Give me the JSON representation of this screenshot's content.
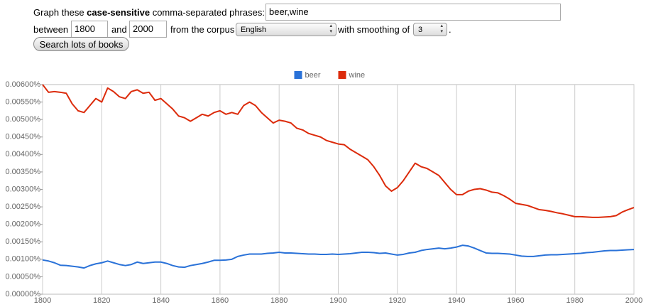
{
  "form": {
    "prompt_prefix": "Graph these",
    "prompt_bold": "case-sensitive",
    "prompt_suffix": "comma-separated phrases:",
    "phrases": "beer,wine",
    "between_label": "between",
    "start_year": "1800",
    "and_label": "and",
    "end_year": "2000",
    "corpus_label": "from the corpus",
    "corpus": "English",
    "smoothing_label": "with smoothing of",
    "smoothing": "3",
    "period": ".",
    "button": "Search lots of books"
  },
  "chart_data": {
    "type": "line",
    "x": [
      1800,
      1802,
      1804,
      1806,
      1808,
      1810,
      1812,
      1814,
      1816,
      1818,
      1820,
      1822,
      1824,
      1826,
      1828,
      1830,
      1832,
      1834,
      1836,
      1838,
      1840,
      1842,
      1844,
      1846,
      1848,
      1850,
      1852,
      1854,
      1856,
      1858,
      1860,
      1862,
      1864,
      1866,
      1868,
      1870,
      1872,
      1874,
      1876,
      1878,
      1880,
      1882,
      1884,
      1886,
      1888,
      1890,
      1892,
      1894,
      1896,
      1898,
      1900,
      1902,
      1904,
      1906,
      1908,
      1910,
      1912,
      1914,
      1916,
      1918,
      1920,
      1922,
      1924,
      1926,
      1928,
      1930,
      1932,
      1934,
      1936,
      1938,
      1940,
      1942,
      1944,
      1946,
      1948,
      1950,
      1952,
      1954,
      1956,
      1958,
      1960,
      1962,
      1964,
      1966,
      1968,
      1970,
      1972,
      1974,
      1976,
      1978,
      1980,
      1982,
      1984,
      1986,
      1988,
      1990,
      1992,
      1994,
      1996,
      1998,
      2000
    ],
    "series": [
      {
        "name": "beer",
        "color": "#2a72d8",
        "values": [
          0.00098,
          0.00095,
          0.0009,
          0.00083,
          0.00082,
          0.0008,
          0.00078,
          0.00075,
          0.00082,
          0.00087,
          0.0009,
          0.00095,
          0.0009,
          0.00085,
          0.00082,
          0.00085,
          0.00092,
          0.00088,
          0.0009,
          0.00092,
          0.00092,
          0.00088,
          0.00082,
          0.00078,
          0.00077,
          0.00082,
          0.00085,
          0.00088,
          0.00092,
          0.00097,
          0.00097,
          0.00098,
          0.001,
          0.00108,
          0.00112,
          0.00115,
          0.00115,
          0.00115,
          0.00117,
          0.00118,
          0.0012,
          0.00118,
          0.00118,
          0.00117,
          0.00116,
          0.00115,
          0.00115,
          0.00114,
          0.00114,
          0.00115,
          0.00114,
          0.00115,
          0.00116,
          0.00118,
          0.0012,
          0.0012,
          0.00119,
          0.00117,
          0.00118,
          0.00115,
          0.00112,
          0.00114,
          0.00118,
          0.0012,
          0.00125,
          0.00128,
          0.0013,
          0.00132,
          0.0013,
          0.00132,
          0.00135,
          0.0014,
          0.00138,
          0.00132,
          0.00125,
          0.00118,
          0.00117,
          0.00117,
          0.00116,
          0.00115,
          0.00112,
          0.00109,
          0.00108,
          0.00108,
          0.0011,
          0.00112,
          0.00113,
          0.00113,
          0.00114,
          0.00115,
          0.00116,
          0.00117,
          0.00119,
          0.0012,
          0.00122,
          0.00124,
          0.00125,
          0.00125,
          0.00126,
          0.00127,
          0.00128
        ]
      },
      {
        "name": "wine",
        "color": "#dc2b0b",
        "values": [
          0.006,
          0.00578,
          0.0058,
          0.00578,
          0.00575,
          0.00545,
          0.00525,
          0.0052,
          0.0054,
          0.0056,
          0.0055,
          0.0059,
          0.0058,
          0.00565,
          0.0056,
          0.0058,
          0.00585,
          0.00575,
          0.00578,
          0.00555,
          0.0056,
          0.00545,
          0.0053,
          0.0051,
          0.00505,
          0.00495,
          0.00505,
          0.00515,
          0.0051,
          0.0052,
          0.00525,
          0.00515,
          0.0052,
          0.00515,
          0.0054,
          0.0055,
          0.0054,
          0.0052,
          0.00505,
          0.0049,
          0.00498,
          0.00495,
          0.0049,
          0.00475,
          0.0047,
          0.0046,
          0.00455,
          0.0045,
          0.0044,
          0.00435,
          0.0043,
          0.00428,
          0.00415,
          0.00405,
          0.00395,
          0.00385,
          0.00365,
          0.0034,
          0.0031,
          0.00295,
          0.00305,
          0.00325,
          0.0035,
          0.00375,
          0.00365,
          0.0036,
          0.0035,
          0.0034,
          0.0032,
          0.003,
          0.00285,
          0.00285,
          0.00295,
          0.003,
          0.00302,
          0.00298,
          0.00292,
          0.0029,
          0.00282,
          0.00272,
          0.0026,
          0.00257,
          0.00254,
          0.00248,
          0.00242,
          0.0024,
          0.00237,
          0.00233,
          0.0023,
          0.00226,
          0.00222,
          0.00222,
          0.00221,
          0.0022,
          0.0022,
          0.00221,
          0.00222,
          0.00225,
          0.00235,
          0.00242,
          0.00248
        ]
      }
    ],
    "xlim": [
      1800,
      2000
    ],
    "xticks": [
      1800,
      1820,
      1840,
      1860,
      1880,
      1900,
      1920,
      1940,
      1960,
      1980,
      2000
    ],
    "ylim": [
      0,
      0.006
    ],
    "yticks": [
      {
        "value": 0,
        "label": "0.00000%"
      },
      {
        "value": 0.0005,
        "label": "0.00050%"
      },
      {
        "value": 0.001,
        "label": "0.00100%"
      },
      {
        "value": 0.0015,
        "label": "0.00150%"
      },
      {
        "value": 0.002,
        "label": "0.00200%"
      },
      {
        "value": 0.0025,
        "label": "0.00250%"
      },
      {
        "value": 0.003,
        "label": "0.00300%"
      },
      {
        "value": 0.0035,
        "label": "0.00350%"
      },
      {
        "value": 0.004,
        "label": "0.00400%"
      },
      {
        "value": 0.0045,
        "label": "0.00450%"
      },
      {
        "value": 0.005,
        "label": "0.00500%"
      },
      {
        "value": 0.0055,
        "label": "0.00550%"
      },
      {
        "value": 0.006,
        "label": "0.00600%"
      }
    ],
    "grid": "x",
    "legend": "top"
  }
}
